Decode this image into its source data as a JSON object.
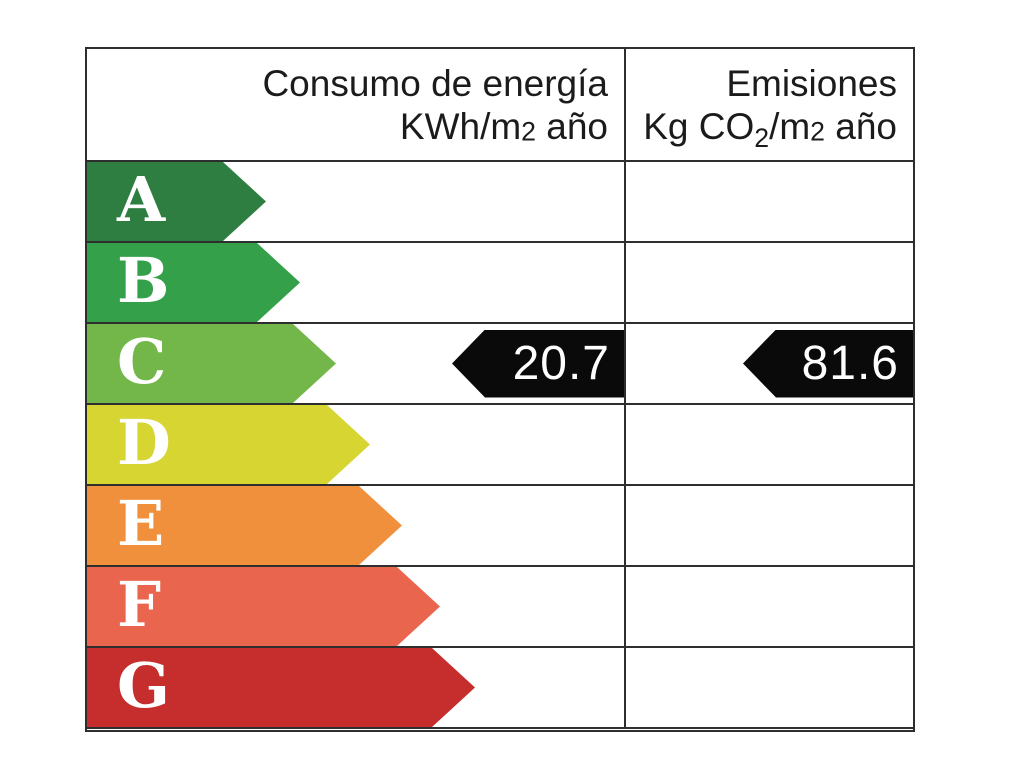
{
  "header": {
    "consumption": {
      "line1": "Consumo de energía",
      "line2_prefix": "KWh/m",
      "line2_exp": "2",
      "line2_suffix": " año"
    },
    "emissions": {
      "line1": "Emisiones",
      "line2_prefix": "Kg CO",
      "line2_sub": "2",
      "line2_mid": "/m",
      "line2_exp": "2",
      "line2_suffix": " año"
    }
  },
  "ratings": [
    {
      "label": "A",
      "color": "#2e7d41"
    },
    {
      "label": "B",
      "color": "#35a04a"
    },
    {
      "label": "C",
      "color": "#73b74b"
    },
    {
      "label": "D",
      "color": "#d6d531"
    },
    {
      "label": "E",
      "color": "#f0903d"
    },
    {
      "label": "F",
      "color": "#e9654d"
    },
    {
      "label": "G",
      "color": "#c52e2c"
    }
  ],
  "values": {
    "rated_letter": "C",
    "consumption": "20.7",
    "emissions": "81.6",
    "marker_color": "#0a0a0a",
    "marker_text_color": "#ffffff"
  },
  "colors": {
    "table_border": "#2e2e2e",
    "header_text": "#1b1b1b",
    "letter_text": "#ffffff",
    "background": "#ffffff"
  },
  "chart_data": {
    "type": "bar",
    "title": "Energy efficiency rating scale (Spain)",
    "columns": [
      "Consumo de energía KWh/m2 año",
      "Emisiones Kg CO2/m2 año"
    ],
    "categories": [
      "A",
      "B",
      "C",
      "D",
      "E",
      "F",
      "G"
    ],
    "category_colors": [
      "#2e7d41",
      "#35a04a",
      "#73b74b",
      "#d6d531",
      "#f0903d",
      "#e9654d",
      "#c52e2c"
    ],
    "rated_category": "C",
    "values": {
      "consumption_kwh_m2_year": 20.7,
      "emissions_kg_co2_m2_year": 81.6
    },
    "layout": "horizontal arrows increasing in length from A to G; black left-pointing markers on row C in both value columns"
  }
}
